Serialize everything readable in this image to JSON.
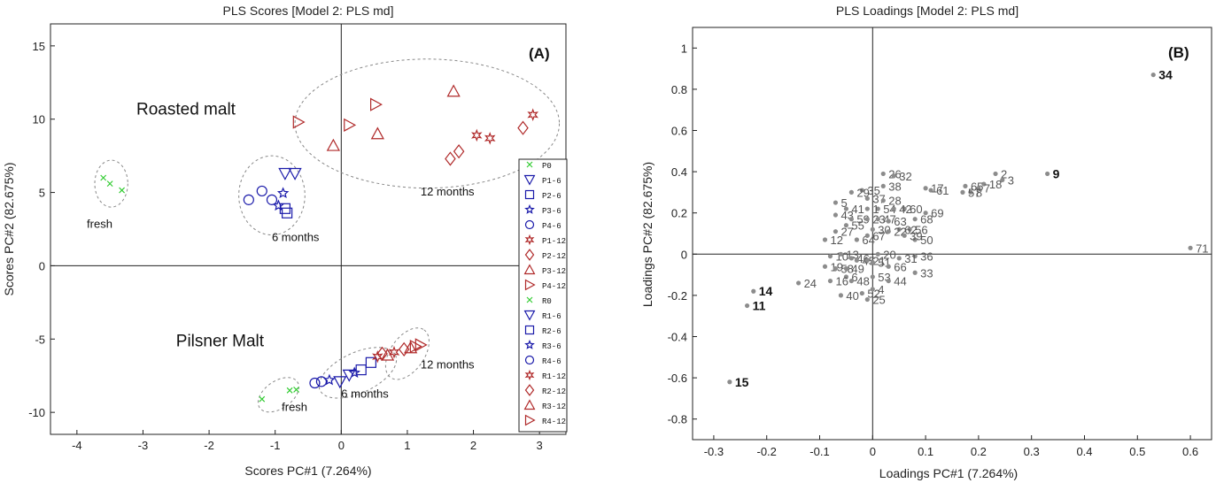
{
  "chart_data": [
    {
      "type": "scatter",
      "title": "PLS Scores [Model 2: PLS md]",
      "xlabel": "Scores PC#1 (7.264%)",
      "ylabel": "Scores PC#2 (82.675%)",
      "panel_label": "(A)",
      "xlim": [
        -4.4,
        3.4
      ],
      "ylim": [
        -11.5,
        16.5
      ],
      "xticks": [
        -4,
        -3,
        -2,
        -1,
        0,
        1,
        2,
        3
      ],
      "yticks": [
        -10,
        -5,
        0,
        5,
        10,
        15
      ],
      "grid": false,
      "legend_position": "right",
      "colors": {
        "pilsner_fresh": "#33cc33",
        "six_month": "#1a1aaa",
        "twelve_month": "#b02a2a"
      },
      "annotations": [
        {
          "text": "Roasted malt",
          "x": -3.1,
          "y": 10.3
        },
        {
          "text": "Pilsner Malt",
          "x": -2.5,
          "y": -5.5
        },
        {
          "text": "fresh",
          "x": -3.85,
          "y": 2.6
        },
        {
          "text": "6 months",
          "x": -1.05,
          "y": 1.7
        },
        {
          "text": "12 months",
          "x": 1.2,
          "y": 4.8
        },
        {
          "text": "6 months",
          "x": 0.0,
          "y": -9.0
        },
        {
          "text": "12 months",
          "x": 1.2,
          "y": -7.0
        },
        {
          "text": "fresh",
          "x": -0.9,
          "y": -9.9
        }
      ],
      "series": [
        {
          "name": "P0",
          "marker": "x",
          "color": "#33cc33",
          "points": [
            [
              -1.2,
              -9.1
            ],
            [
              -0.78,
              -8.5
            ],
            [
              -0.68,
              -8.45
            ]
          ]
        },
        {
          "name": "P1-6",
          "marker": "tri-down",
          "color": "#1a1aaa",
          "points": [
            [
              -0.02,
              -7.9
            ],
            [
              0.12,
              -7.45
            ]
          ]
        },
        {
          "name": "P2-6",
          "marker": "square",
          "color": "#1a1aaa",
          "points": [
            [
              0.3,
              -7.1
            ],
            [
              0.45,
              -6.6
            ]
          ]
        },
        {
          "name": "P3-6",
          "marker": "star",
          "color": "#1a1aaa",
          "points": [
            [
              -0.18,
              -7.8
            ],
            [
              0.2,
              -7.3
            ]
          ]
        },
        {
          "name": "P4-6",
          "marker": "circle",
          "color": "#1a1aaa",
          "points": [
            [
              -0.4,
              -8.0
            ],
            [
              -0.3,
              -7.9
            ]
          ]
        },
        {
          "name": "P1-12",
          "marker": "hexstar",
          "color": "#b02a2a",
          "points": [
            [
              0.55,
              -6.2
            ],
            [
              0.8,
              -5.9
            ]
          ]
        },
        {
          "name": "P2-12",
          "marker": "diamond",
          "color": "#b02a2a",
          "points": [
            [
              0.62,
              -6.0
            ],
            [
              0.95,
              -5.7
            ]
          ]
        },
        {
          "name": "P3-12",
          "marker": "tri-up",
          "color": "#b02a2a",
          "points": [
            [
              0.7,
              -6.1
            ],
            [
              1.05,
              -5.6
            ]
          ]
        },
        {
          "name": "P4-12",
          "marker": "tri-right",
          "color": "#b02a2a",
          "points": [
            [
              1.12,
              -5.5
            ],
            [
              1.2,
              -5.4
            ]
          ]
        },
        {
          "name": "R0",
          "marker": "x",
          "color": "#33cc33",
          "points": [
            [
              -3.6,
              6.0
            ],
            [
              -3.5,
              5.6
            ],
            [
              -3.32,
              5.15
            ]
          ]
        },
        {
          "name": "R1-6",
          "marker": "tri-down",
          "color": "#1a1aaa",
          "points": [
            [
              -0.85,
              6.3
            ],
            [
              -0.7,
              6.3
            ]
          ]
        },
        {
          "name": "R2-6",
          "marker": "square",
          "color": "#1a1aaa",
          "points": [
            [
              -0.85,
              3.9
            ],
            [
              -0.82,
              3.6
            ]
          ]
        },
        {
          "name": "R3-6",
          "marker": "star",
          "color": "#1a1aaa",
          "points": [
            [
              -0.88,
              4.95
            ],
            [
              -0.95,
              4.1
            ]
          ]
        },
        {
          "name": "R4-6",
          "marker": "circle",
          "color": "#1a1aaa",
          "points": [
            [
              -1.4,
              4.5
            ],
            [
              -1.2,
              5.1
            ],
            [
              -1.05,
              4.5
            ]
          ]
        },
        {
          "name": "R1-12",
          "marker": "hexstar",
          "color": "#b02a2a",
          "points": [
            [
              2.05,
              8.9
            ],
            [
              2.25,
              8.7
            ],
            [
              2.9,
              10.3
            ]
          ]
        },
        {
          "name": "R2-12",
          "marker": "diamond",
          "color": "#b02a2a",
          "points": [
            [
              1.65,
              7.3
            ],
            [
              1.78,
              7.8
            ],
            [
              2.75,
              9.4
            ]
          ]
        },
        {
          "name": "R3-12",
          "marker": "tri-up",
          "color": "#b02a2a",
          "points": [
            [
              -0.12,
              8.2
            ],
            [
              0.55,
              9.0
            ],
            [
              1.7,
              11.9
            ]
          ]
        },
        {
          "name": "R4-12",
          "marker": "tri-right",
          "color": "#b02a2a",
          "points": [
            [
              -0.65,
              9.8
            ],
            [
              0.12,
              9.6
            ],
            [
              0.52,
              11.0
            ]
          ]
        }
      ]
    },
    {
      "type": "scatter",
      "title": "PLS Loadings [Model 2: PLS md]",
      "xlabel": "Loadings PC#1 (7.264%)",
      "ylabel": "Loadings PC#2 (82.675%)",
      "panel_label": "(B)",
      "xlim": [
        -0.34,
        0.64
      ],
      "ylim": [
        -0.9,
        1.1
      ],
      "xticks": [
        -0.3,
        -0.2,
        -0.1,
        0,
        0.1,
        0.2,
        0.3,
        0.4,
        0.5,
        0.6
      ],
      "yticks": [
        -0.8,
        -0.6,
        -0.4,
        -0.2,
        0,
        0.2,
        0.4,
        0.6,
        0.8,
        1
      ],
      "grid": false,
      "point_color": "#8c8c8c",
      "points": [
        {
          "id": "34",
          "x": 0.53,
          "y": 0.87,
          "bold": true
        },
        {
          "id": "9",
          "x": 0.33,
          "y": 0.39,
          "bold": true
        },
        {
          "id": "71",
          "x": 0.6,
          "y": 0.03,
          "bold": false
        },
        {
          "id": "14",
          "x": -0.225,
          "y": -0.18,
          "bold": true
        },
        {
          "id": "11",
          "x": -0.237,
          "y": -0.25,
          "bold": true
        },
        {
          "id": "15",
          "x": -0.27,
          "y": -0.62,
          "bold": true
        },
        {
          "id": "2",
          "x": 0.232,
          "y": 0.39,
          "bold": false
        },
        {
          "id": "3",
          "x": 0.245,
          "y": 0.36,
          "bold": false
        },
        {
          "id": "18",
          "x": 0.21,
          "y": 0.34,
          "bold": false
        },
        {
          "id": "65",
          "x": 0.175,
          "y": 0.33,
          "bold": false
        },
        {
          "id": "7",
          "x": 0.2,
          "y": 0.32,
          "bold": false
        },
        {
          "id": "8",
          "x": 0.185,
          "y": 0.3,
          "bold": false
        },
        {
          "id": "57",
          "x": 0.17,
          "y": 0.3,
          "bold": false
        },
        {
          "id": "61",
          "x": 0.11,
          "y": 0.31,
          "bold": false
        },
        {
          "id": "17",
          "x": 0.1,
          "y": 0.32,
          "bold": false
        },
        {
          "id": "69",
          "x": 0.1,
          "y": 0.2,
          "bold": false
        },
        {
          "id": "68",
          "x": 0.08,
          "y": 0.17,
          "bold": false
        },
        {
          "id": "60",
          "x": 0.06,
          "y": 0.22,
          "bold": false
        },
        {
          "id": "56",
          "x": 0.07,
          "y": 0.12,
          "bold": false
        },
        {
          "id": "50",
          "x": 0.08,
          "y": 0.07,
          "bold": false
        },
        {
          "id": "62",
          "x": 0.05,
          "y": 0.12,
          "bold": false
        },
        {
          "id": "26",
          "x": 0.02,
          "y": 0.39,
          "bold": false
        },
        {
          "id": "32",
          "x": 0.04,
          "y": 0.38,
          "bold": false
        },
        {
          "id": "38",
          "x": 0.02,
          "y": 0.33,
          "bold": false
        },
        {
          "id": "35",
          "x": -0.02,
          "y": 0.31,
          "bold": false
        },
        {
          "id": "29",
          "x": -0.04,
          "y": 0.3,
          "bold": false
        },
        {
          "id": "37",
          "x": -0.01,
          "y": 0.27,
          "bold": false
        },
        {
          "id": "28",
          "x": 0.02,
          "y": 0.26,
          "bold": false
        },
        {
          "id": "54",
          "x": 0.01,
          "y": 0.22,
          "bold": false
        },
        {
          "id": "42",
          "x": 0.04,
          "y": 0.22,
          "bold": false
        },
        {
          "id": "1",
          "x": -0.01,
          "y": 0.22,
          "bold": false
        },
        {
          "id": "5",
          "x": -0.07,
          "y": 0.25,
          "bold": false
        },
        {
          "id": "41",
          "x": -0.05,
          "y": 0.22,
          "bold": false
        },
        {
          "id": "43",
          "x": -0.07,
          "y": 0.19,
          "bold": false
        },
        {
          "id": "59",
          "x": -0.04,
          "y": 0.17,
          "bold": false
        },
        {
          "id": "23",
          "x": -0.01,
          "y": 0.17,
          "bold": false
        },
        {
          "id": "47",
          "x": 0.01,
          "y": 0.17,
          "bold": false
        },
        {
          "id": "63",
          "x": 0.03,
          "y": 0.16,
          "bold": false
        },
        {
          "id": "55",
          "x": -0.05,
          "y": 0.14,
          "bold": false
        },
        {
          "id": "30",
          "x": 0.0,
          "y": 0.12,
          "bold": false
        },
        {
          "id": "22",
          "x": 0.03,
          "y": 0.11,
          "bold": false
        },
        {
          "id": "39",
          "x": 0.06,
          "y": 0.09,
          "bold": false
        },
        {
          "id": "27",
          "x": -0.07,
          "y": 0.11,
          "bold": false
        },
        {
          "id": "12",
          "x": -0.09,
          "y": 0.07,
          "bold": false
        },
        {
          "id": "64",
          "x": -0.03,
          "y": 0.07,
          "bold": false
        },
        {
          "id": "67",
          "x": -0.01,
          "y": 0.09,
          "bold": false
        },
        {
          "id": "20",
          "x": 0.01,
          "y": 0.0,
          "bold": false
        },
        {
          "id": "36",
          "x": 0.08,
          "y": -0.01,
          "bold": false
        },
        {
          "id": "31",
          "x": 0.05,
          "y": -0.02,
          "bold": false
        },
        {
          "id": "10",
          "x": -0.08,
          "y": -0.01,
          "bold": false
        },
        {
          "id": "13",
          "x": -0.06,
          "y": 0.0,
          "bold": false
        },
        {
          "id": "46",
          "x": -0.04,
          "y": -0.02,
          "bold": false
        },
        {
          "id": "45",
          "x": -0.03,
          "y": -0.03,
          "bold": false
        },
        {
          "id": "21",
          "x": -0.01,
          "y": -0.03,
          "bold": false
        },
        {
          "id": "51",
          "x": 0.0,
          "y": -0.04,
          "bold": false
        },
        {
          "id": "66",
          "x": 0.03,
          "y": -0.06,
          "bold": false
        },
        {
          "id": "33",
          "x": 0.08,
          "y": -0.09,
          "bold": false
        },
        {
          "id": "19",
          "x": -0.09,
          "y": -0.06,
          "bold": false
        },
        {
          "id": "58",
          "x": -0.07,
          "y": -0.07,
          "bold": false
        },
        {
          "id": "49",
          "x": -0.05,
          "y": -0.07,
          "bold": false
        },
        {
          "id": "6",
          "x": -0.05,
          "y": -0.11,
          "bold": false
        },
        {
          "id": "53",
          "x": 0.0,
          "y": -0.11,
          "bold": false
        },
        {
          "id": "44",
          "x": 0.03,
          "y": -0.13,
          "bold": false
        },
        {
          "id": "16",
          "x": -0.08,
          "y": -0.13,
          "bold": false
        },
        {
          "id": "48",
          "x": -0.04,
          "y": -0.13,
          "bold": false
        },
        {
          "id": "24",
          "x": -0.14,
          "y": -0.14,
          "bold": false
        },
        {
          "id": "40",
          "x": -0.06,
          "y": -0.2,
          "bold": false
        },
        {
          "id": "52",
          "x": -0.02,
          "y": -0.19,
          "bold": false
        },
        {
          "id": "4",
          "x": 0.0,
          "y": -0.17,
          "bold": false
        },
        {
          "id": "25",
          "x": -0.01,
          "y": -0.22,
          "bold": false
        }
      ]
    }
  ]
}
